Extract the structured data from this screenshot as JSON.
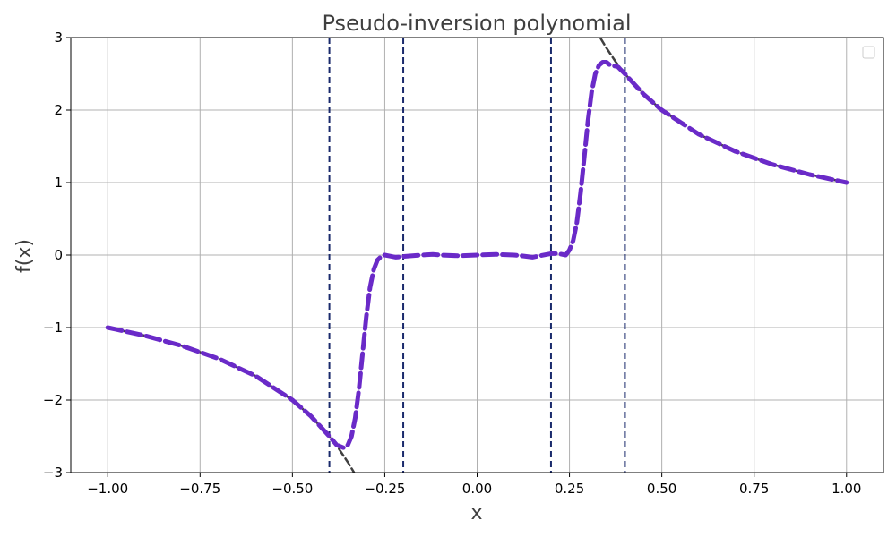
{
  "chart_data": {
    "type": "line",
    "title": "Pseudo-inversion polynomial",
    "xlabel": "x",
    "ylabel": "f(x)",
    "xlim": [
      -1.1,
      1.1
    ],
    "ylim": [
      -3,
      3
    ],
    "grid": true,
    "legend": "top-right (empty)",
    "x_ticks": [
      -1.0,
      -0.75,
      -0.5,
      -0.25,
      0.0,
      0.25,
      0.5,
      0.75,
      1.0
    ],
    "x_tick_labels": [
      "−1.00",
      "−0.75",
      "−0.50",
      "−0.25",
      "0.00",
      "0.25",
      "0.50",
      "0.75",
      "1.00"
    ],
    "y_ticks": [
      -3,
      -2,
      -1,
      0,
      1,
      2,
      3
    ],
    "y_tick_labels": [
      "−3",
      "−2",
      "−1",
      "0",
      "1",
      "2",
      "3"
    ],
    "vlines": [
      -0.4,
      -0.2,
      0.2,
      0.4
    ],
    "series": [
      {
        "style": "dashed",
        "color": "#404040",
        "x": [
          -1.0,
          -0.9,
          -0.8,
          -0.7,
          -0.6,
          -0.5,
          -0.45,
          -0.4,
          -0.375,
          -0.35,
          -0.333
        ],
        "y": [
          -1.0,
          -1.111,
          -1.25,
          -1.429,
          -1.667,
          -2.0,
          -2.222,
          -2.5,
          -2.667,
          -2.857,
          -3.0
        ]
      },
      {
        "style": "dashed",
        "color": "#404040",
        "x": [
          0.333,
          0.35,
          0.375,
          0.4,
          0.45,
          0.5,
          0.6,
          0.7,
          0.8,
          0.9,
          1.0
        ],
        "y": [
          3.0,
          2.857,
          2.667,
          2.5,
          2.222,
          2.0,
          1.667,
          1.429,
          1.25,
          1.111,
          1.0
        ]
      },
      {
        "style": "dashed-thick",
        "color": "#6a2ac8",
        "x": [
          -1.0,
          -0.9,
          -0.8,
          -0.7,
          -0.6,
          -0.5,
          -0.45,
          -0.4,
          -0.38,
          -0.36,
          -0.35,
          -0.34,
          -0.33,
          -0.32,
          -0.31,
          -0.3,
          -0.29,
          -0.28,
          -0.27,
          -0.26,
          -0.25,
          -0.24,
          -0.22,
          -0.2,
          -0.15,
          -0.12,
          -0.1,
          -0.05,
          0.0,
          0.05,
          0.1,
          0.12,
          0.15,
          0.2,
          0.22,
          0.24,
          0.25,
          0.26,
          0.27,
          0.28,
          0.29,
          0.3,
          0.31,
          0.32,
          0.33,
          0.34,
          0.35,
          0.36,
          0.38,
          0.4,
          0.45,
          0.5,
          0.6,
          0.7,
          0.8,
          0.9,
          1.0
        ],
        "y": [
          -1.0,
          -1.111,
          -1.25,
          -1.429,
          -1.667,
          -2.0,
          -2.222,
          -2.5,
          -2.62,
          -2.66,
          -2.62,
          -2.5,
          -2.25,
          -1.85,
          -1.35,
          -0.85,
          -0.45,
          -0.2,
          -0.07,
          -0.02,
          0.0,
          -0.01,
          -0.03,
          -0.02,
          0.0,
          0.01,
          0.0,
          -0.01,
          0.0,
          0.01,
          0.0,
          -0.01,
          -0.03,
          0.02,
          0.02,
          0.0,
          0.07,
          0.2,
          0.45,
          0.85,
          1.35,
          1.85,
          2.25,
          2.5,
          2.62,
          2.66,
          2.66,
          2.62,
          2.6,
          2.5,
          2.222,
          2.0,
          1.667,
          1.429,
          1.25,
          1.111,
          1.0
        ]
      }
    ]
  }
}
